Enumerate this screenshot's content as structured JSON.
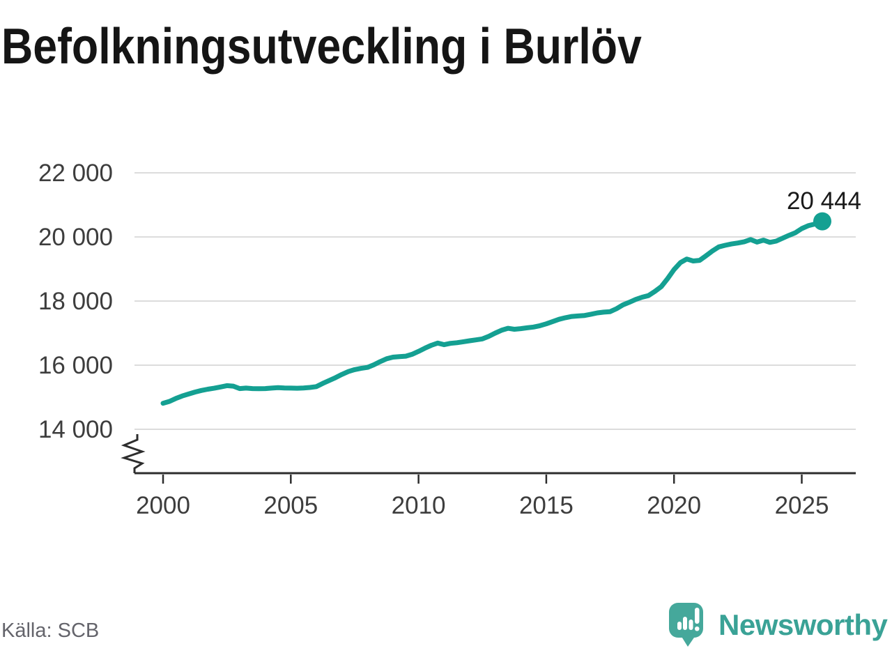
{
  "title": "Befolkningsutveckling i Burlöv",
  "source": "Källa: SCB",
  "branding": {
    "name": "Newsworthy",
    "icon": "newsworthy-logo-icon",
    "wordmark_color": "#3aa296",
    "bubble_color": "#45a89b"
  },
  "chart_data": {
    "type": "line",
    "title": "Befolkningsutveckling i Burlöv",
    "xlabel": "",
    "ylabel": "",
    "grid": true,
    "legend": "none",
    "axis_break": true,
    "line_color": "#14a092",
    "grid_color": "#dcdcdc",
    "axis_color": "#2d2d2d",
    "xlim": [
      1998.9,
      2027.1
    ],
    "ylim": [
      14000,
      22000
    ],
    "x_ticks": {
      "values": [
        2000,
        2005,
        2010,
        2015,
        2020,
        2025
      ],
      "labels": [
        "2000",
        "2005",
        "2010",
        "2015",
        "2020",
        "2025"
      ]
    },
    "y_ticks": {
      "values": [
        22000,
        20000,
        18000,
        16000,
        14000
      ],
      "labels": [
        "22 000",
        "20 000",
        "18 000",
        "16 000",
        "14 000"
      ]
    },
    "end_label": "20 444",
    "end_value": 20444,
    "series": [
      {
        "points": [
          [
            2000,
            14810
          ],
          [
            2000.25,
            14870
          ],
          [
            2000.5,
            14960
          ],
          [
            2000.75,
            15040
          ],
          [
            2001,
            15100
          ],
          [
            2001.25,
            15160
          ],
          [
            2001.5,
            15210
          ],
          [
            2001.75,
            15250
          ],
          [
            2002,
            15280
          ],
          [
            2002.25,
            15320
          ],
          [
            2002.5,
            15360
          ],
          [
            2002.75,
            15345
          ],
          [
            2003,
            15270
          ],
          [
            2003.25,
            15285
          ],
          [
            2003.5,
            15270
          ],
          [
            2003.75,
            15265
          ],
          [
            2004,
            15270
          ],
          [
            2004.25,
            15285
          ],
          [
            2004.5,
            15300
          ],
          [
            2004.75,
            15290
          ],
          [
            2005,
            15285
          ],
          [
            2005.25,
            15280
          ],
          [
            2005.5,
            15290
          ],
          [
            2005.75,
            15305
          ],
          [
            2006,
            15330
          ],
          [
            2006.25,
            15430
          ],
          [
            2006.5,
            15520
          ],
          [
            2006.75,
            15610
          ],
          [
            2007,
            15710
          ],
          [
            2007.25,
            15800
          ],
          [
            2007.5,
            15860
          ],
          [
            2007.75,
            15900
          ],
          [
            2008,
            15930
          ],
          [
            2008.25,
            16010
          ],
          [
            2008.5,
            16110
          ],
          [
            2008.75,
            16200
          ],
          [
            2009,
            16250
          ],
          [
            2009.25,
            16265
          ],
          [
            2009.5,
            16280
          ],
          [
            2009.75,
            16340
          ],
          [
            2010,
            16430
          ],
          [
            2010.25,
            16530
          ],
          [
            2010.5,
            16620
          ],
          [
            2010.75,
            16690
          ],
          [
            2011,
            16640
          ],
          [
            2011.25,
            16680
          ],
          [
            2011.5,
            16700
          ],
          [
            2011.75,
            16730
          ],
          [
            2012,
            16760
          ],
          [
            2012.25,
            16790
          ],
          [
            2012.5,
            16820
          ],
          [
            2012.75,
            16900
          ],
          [
            2013,
            17000
          ],
          [
            2013.25,
            17090
          ],
          [
            2013.5,
            17150
          ],
          [
            2013.75,
            17120
          ],
          [
            2014,
            17140
          ],
          [
            2014.25,
            17165
          ],
          [
            2014.5,
            17190
          ],
          [
            2014.75,
            17230
          ],
          [
            2015,
            17290
          ],
          [
            2015.25,
            17360
          ],
          [
            2015.5,
            17430
          ],
          [
            2015.75,
            17480
          ],
          [
            2016,
            17520
          ],
          [
            2016.25,
            17535
          ],
          [
            2016.5,
            17550
          ],
          [
            2016.75,
            17590
          ],
          [
            2017,
            17630
          ],
          [
            2017.25,
            17655
          ],
          [
            2017.5,
            17670
          ],
          [
            2017.75,
            17760
          ],
          [
            2018,
            17880
          ],
          [
            2018.25,
            17960
          ],
          [
            2018.5,
            18050
          ],
          [
            2018.75,
            18120
          ],
          [
            2019,
            18170
          ],
          [
            2019.25,
            18300
          ],
          [
            2019.5,
            18450
          ],
          [
            2019.75,
            18700
          ],
          [
            2020,
            18980
          ],
          [
            2020.25,
            19200
          ],
          [
            2020.5,
            19310
          ],
          [
            2020.75,
            19250
          ],
          [
            2021,
            19270
          ],
          [
            2021.25,
            19410
          ],
          [
            2021.5,
            19560
          ],
          [
            2021.75,
            19690
          ],
          [
            2022,
            19740
          ],
          [
            2022.25,
            19780
          ],
          [
            2022.5,
            19810
          ],
          [
            2022.75,
            19850
          ],
          [
            2023,
            19920
          ],
          [
            2023.25,
            19840
          ],
          [
            2023.5,
            19900
          ],
          [
            2023.75,
            19830
          ],
          [
            2024,
            19870
          ],
          [
            2024.25,
            19960
          ],
          [
            2024.5,
            20050
          ],
          [
            2024.75,
            20130
          ],
          [
            2025,
            20260
          ],
          [
            2025.25,
            20350
          ],
          [
            2025.5,
            20400
          ],
          [
            2025.75,
            20444
          ]
        ]
      }
    ]
  }
}
